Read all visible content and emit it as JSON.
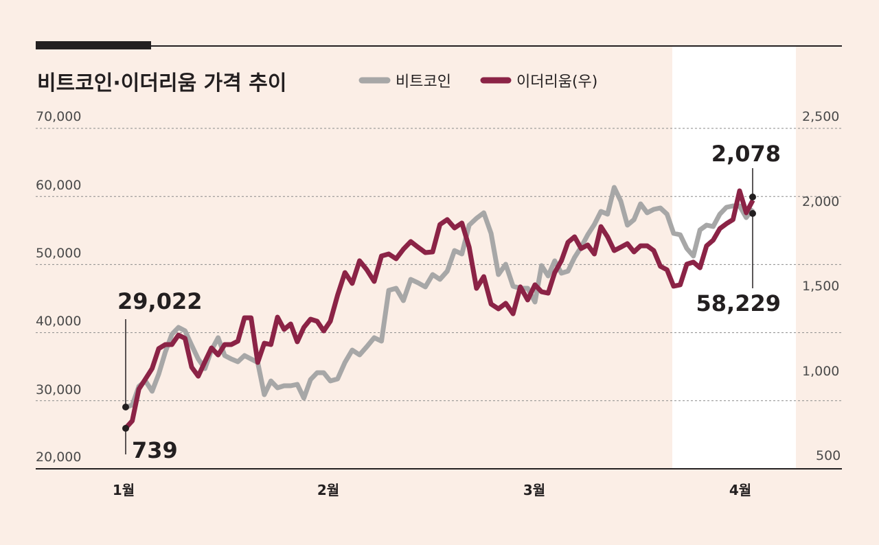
{
  "chart_data": {
    "type": "line",
    "title": "비트코인·이더리움 가격 추이",
    "legend": [
      "비트코인",
      "이더리움(우)"
    ],
    "legend_placement": "top",
    "grid": true,
    "colors": {
      "bitcoin": "#a7a7a7",
      "ethereum": "#8b2346",
      "background": "#fbeee6",
      "highlight": "#ffffff"
    },
    "x_tick_labels": [
      "1월",
      "2월",
      "3월",
      "4월"
    ],
    "y_left": {
      "ylim": [
        20000,
        70000
      ],
      "ticks": [
        "70,000",
        "60,000",
        "50,000",
        "40,000",
        "30,000",
        "20,000"
      ]
    },
    "y_right": {
      "ylim": [
        500,
        2500
      ],
      "ticks": [
        "2,500",
        "2,000",
        "1,500",
        "1,000",
        "500"
      ]
    },
    "x": [
      "01-01",
      "01-02",
      "01-03",
      "01-04",
      "01-05",
      "01-06",
      "01-07",
      "01-08",
      "01-09",
      "01-10",
      "01-11",
      "01-12",
      "01-13",
      "01-14",
      "01-15",
      "01-16",
      "01-17",
      "01-18",
      "01-19",
      "01-20",
      "01-21",
      "01-22",
      "01-23",
      "01-24",
      "01-25",
      "01-26",
      "01-27",
      "01-28",
      "01-29",
      "01-30",
      "01-31",
      "02-01",
      "02-02",
      "02-03",
      "02-04",
      "02-05",
      "02-06",
      "02-07",
      "02-08",
      "02-09",
      "02-10",
      "02-11",
      "02-12",
      "02-13",
      "02-14",
      "02-15",
      "02-16",
      "02-17",
      "02-18",
      "02-19",
      "02-20",
      "02-21",
      "02-22",
      "02-23",
      "02-24",
      "02-25",
      "02-26",
      "02-27",
      "02-28",
      "03-01",
      "03-02",
      "03-03",
      "03-04",
      "03-05",
      "03-06",
      "03-07",
      "03-08",
      "03-09",
      "03-10",
      "03-11",
      "03-12",
      "03-13",
      "03-14",
      "03-15",
      "03-16",
      "03-17",
      "03-18",
      "03-19",
      "03-20",
      "03-21",
      "03-22",
      "03-23",
      "03-24",
      "03-25",
      "03-26",
      "03-27",
      "03-28",
      "03-29",
      "03-30",
      "03-31",
      "04-01",
      "04-02",
      "04-03"
    ],
    "series": [
      {
        "name": "비트코인",
        "axis": "left",
        "values": [
          29022,
          29375,
          32096,
          32902,
          31390,
          33910,
          37136,
          39757,
          40765,
          40261,
          38144,
          36128,
          34717,
          37438,
          39253,
          36632,
          36128,
          35725,
          36632,
          36128,
          35624,
          30886,
          32902,
          31894,
          32197,
          32197,
          32398,
          30382,
          33104,
          34112,
          34112,
          32902,
          33205,
          35624,
          37438,
          36733,
          37942,
          39253,
          38749,
          46208,
          46510,
          44696,
          47821,
          47317,
          46712,
          48526,
          47821,
          49030,
          52054,
          51550,
          55784,
          56792,
          57598,
          54574,
          48526,
          50038,
          46813,
          46510,
          46510,
          44494,
          49837,
          48325,
          50542,
          48728,
          49030,
          51046,
          52558,
          54373,
          55885,
          57800,
          57397,
          61328,
          59312,
          55784,
          56590,
          58909,
          57598,
          58102,
          58304,
          57397,
          54574,
          54373,
          52357,
          51248,
          55078,
          55784,
          55582,
          57397,
          58405,
          58606,
          58606,
          56893,
          58229
        ]
      },
      {
        "name": "이더리움(우)",
        "axis": "right",
        "values": [
          739,
          782,
          968,
          1028,
          1089,
          1206,
          1230,
          1230,
          1286,
          1266,
          1097,
          1044,
          1129,
          1210,
          1169,
          1230,
          1230,
          1250,
          1387,
          1387,
          1125,
          1238,
          1230,
          1391,
          1319,
          1351,
          1246,
          1331,
          1379,
          1367,
          1310,
          1367,
          1520,
          1653,
          1589,
          1722,
          1669,
          1601,
          1750,
          1762,
          1734,
          1790,
          1835,
          1802,
          1770,
          1774,
          1935,
          1964,
          1915,
          1944,
          1802,
          1560,
          1629,
          1468,
          1440,
          1472,
          1411,
          1569,
          1492,
          1581,
          1540,
          1532,
          1653,
          1722,
          1831,
          1863,
          1794,
          1815,
          1762,
          1923,
          1863,
          1782,
          1802,
          1823,
          1774,
          1810,
          1810,
          1782,
          1690,
          1669,
          1573,
          1581,
          1702,
          1714,
          1681,
          1810,
          1843,
          1911,
          1940,
          1964,
          2133,
          2004,
          2078
        ]
      }
    ],
    "annotations": {
      "btc_start": "29,022",
      "eth_start": "739",
      "eth_end": "2,078",
      "btc_end": "58,229"
    }
  }
}
